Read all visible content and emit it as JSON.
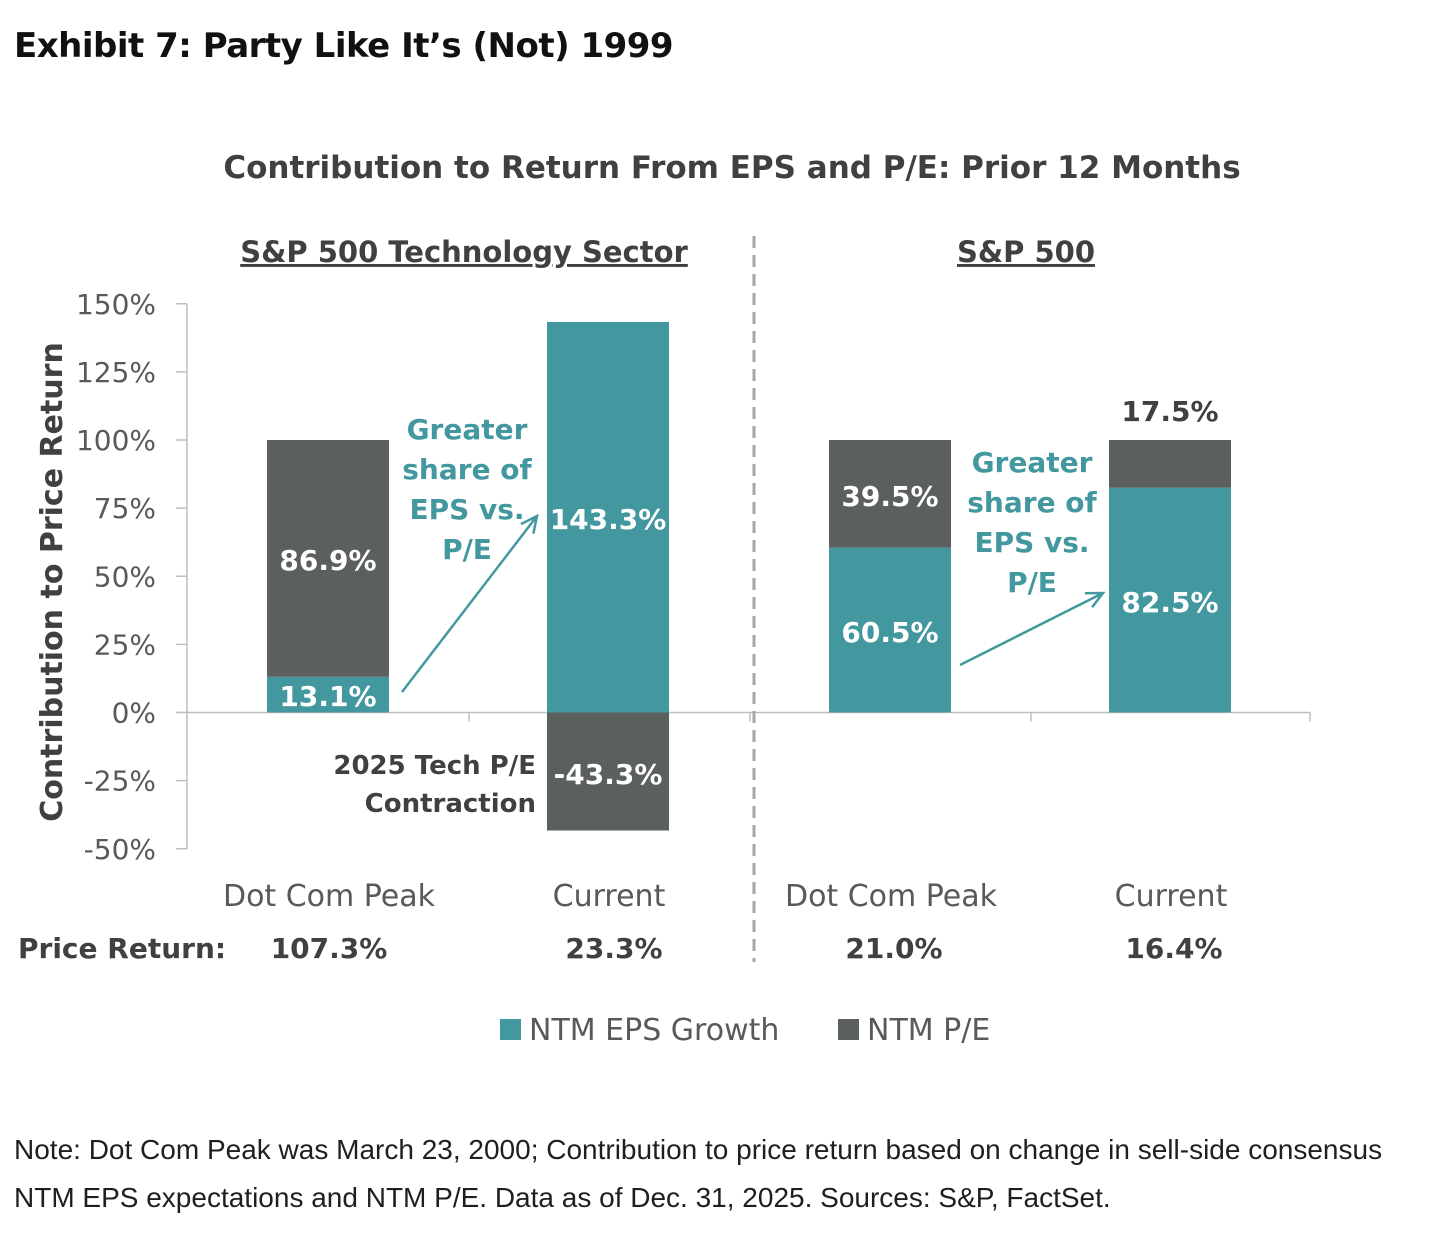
{
  "page": {
    "title": "Exhibit 7: Party Like It’s (Not) 1999",
    "note": "Note: Dot Com Peak was March 23, 2000; Contribution to price return based on change in sell-side consensus NTM EPS expectations and NTM P/E. Data as of Dec. 31, 2025. Sources: S&P, FactSet."
  },
  "chart_data": {
    "type": "bar",
    "stacked": true,
    "title": "Contribution to Return From EPS and P/E: Prior 12 Months",
    "ylabel": "Contribution to Price Return",
    "ylim": [
      -50,
      150
    ],
    "yticks": [
      "150%",
      "125%",
      "100%",
      "75%",
      "50%",
      "25%",
      "0%",
      "-25%",
      "-50%"
    ],
    "grid": false,
    "legend_position": "bottom",
    "panels": [
      "S&P 500 Technology Sector",
      "S&P 500"
    ],
    "categories": [
      "Dot Com Peak",
      "Current",
      "Dot Com Peak",
      "Current"
    ],
    "series": [
      {
        "name": "NTM EPS Growth",
        "color": "#43979f",
        "values": [
          13.1,
          143.3,
          60.5,
          82.5
        ],
        "labels": [
          "13.1%",
          "143.3%",
          "60.5%",
          "82.5%"
        ]
      },
      {
        "name": "NTM P/E",
        "color": "#5b605f",
        "values": [
          86.9,
          -43.3,
          39.5,
          17.5
        ],
        "labels": [
          "86.9%",
          "-43.3%",
          "39.5%",
          "17.5%"
        ]
      }
    ],
    "price_return_label": "Price Return:",
    "price_returns": [
      "107.3%",
      "23.3%",
      "21.0%",
      "16.4%"
    ],
    "annotations": {
      "tech_arrow_text": [
        "Greater",
        "share of",
        "EPS vs.",
        "P/E"
      ],
      "sp_arrow_text": [
        "Greater",
        "share of",
        "EPS vs.",
        "P/E"
      ],
      "contraction_text": [
        "2025 Tech P/E",
        "Contraction"
      ]
    },
    "colors": {
      "teal": "#43979f",
      "gray": "#5b605f",
      "text": "#404040",
      "axis": "#bfbfbf"
    }
  }
}
